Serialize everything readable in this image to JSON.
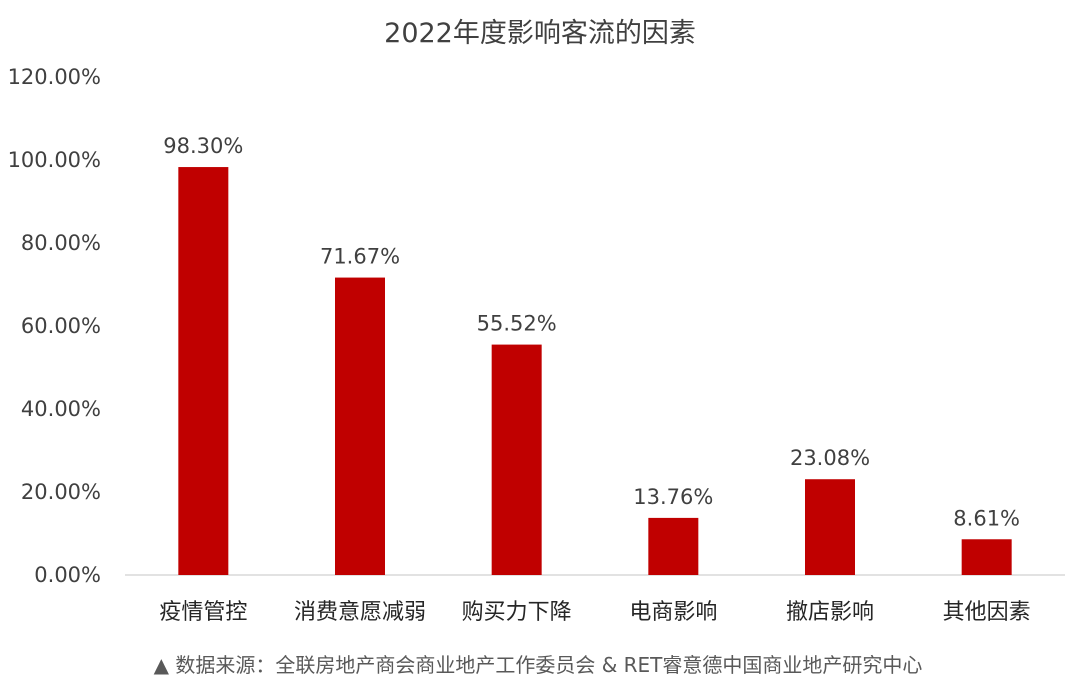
{
  "chart_data": {
    "type": "bar",
    "title": "2022年度影响客流的因素",
    "xlabel": "",
    "ylabel": "",
    "categories": [
      "疫情管控",
      "消费意愿减弱",
      "购买力下降",
      "电商影响",
      "撤店影响",
      "其他因素"
    ],
    "values": [
      98.3,
      71.67,
      55.52,
      13.76,
      23.08,
      8.61
    ],
    "data_labels": [
      "98.30%",
      "71.67%",
      "55.52%",
      "13.76%",
      "23.08%",
      "8.61%"
    ],
    "ylim": [
      0,
      120
    ],
    "yticks": [
      0,
      20,
      40,
      60,
      80,
      100,
      120
    ],
    "ytick_labels": [
      "0.00%",
      "20.00%",
      "40.00%",
      "60.00%",
      "80.00%",
      "100.00%",
      "120.00%"
    ],
    "grid": false,
    "legend": "none",
    "bar_color": "#C00000"
  },
  "source": "▲ 数据来源：全联房地产商会商业地产工作委员会 & RET睿意德中国商业地产研究中心"
}
